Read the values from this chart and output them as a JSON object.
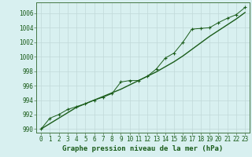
{
  "xlabel": "Graphe pression niveau de la mer (hPa)",
  "bg_color": "#d8f0f0",
  "grid_color": "#c0d8d8",
  "line_color": "#1a5c1a",
  "ylim": [
    989.5,
    1007.5
  ],
  "xlim": [
    -0.5,
    23.5
  ],
  "yticks": [
    990,
    992,
    994,
    996,
    998,
    1000,
    1002,
    1004,
    1006
  ],
  "xticks": [
    0,
    1,
    2,
    3,
    4,
    5,
    6,
    7,
    8,
    9,
    10,
    11,
    12,
    13,
    14,
    15,
    16,
    17,
    18,
    19,
    20,
    21,
    22,
    23
  ],
  "smooth_y": [
    990.0,
    990.75,
    991.5,
    992.25,
    993.0,
    993.5,
    994.0,
    994.5,
    995.0,
    995.5,
    996.1,
    996.7,
    997.3,
    997.9,
    998.6,
    999.3,
    1000.1,
    1001.0,
    1001.9,
    1002.8,
    1003.6,
    1004.4,
    1005.2,
    1006.1
  ],
  "marker_y": [
    990.0,
    991.5,
    992.0,
    992.7,
    993.1,
    993.5,
    994.0,
    994.4,
    994.9,
    996.5,
    996.7,
    996.7,
    997.3,
    998.3,
    999.8,
    1000.5,
    1002.0,
    1003.8,
    1003.9,
    1004.0,
    1004.7,
    1005.3,
    1005.8,
    1006.8
  ],
  "tick_fontsize": 5.5,
  "label_fontsize": 6.5
}
